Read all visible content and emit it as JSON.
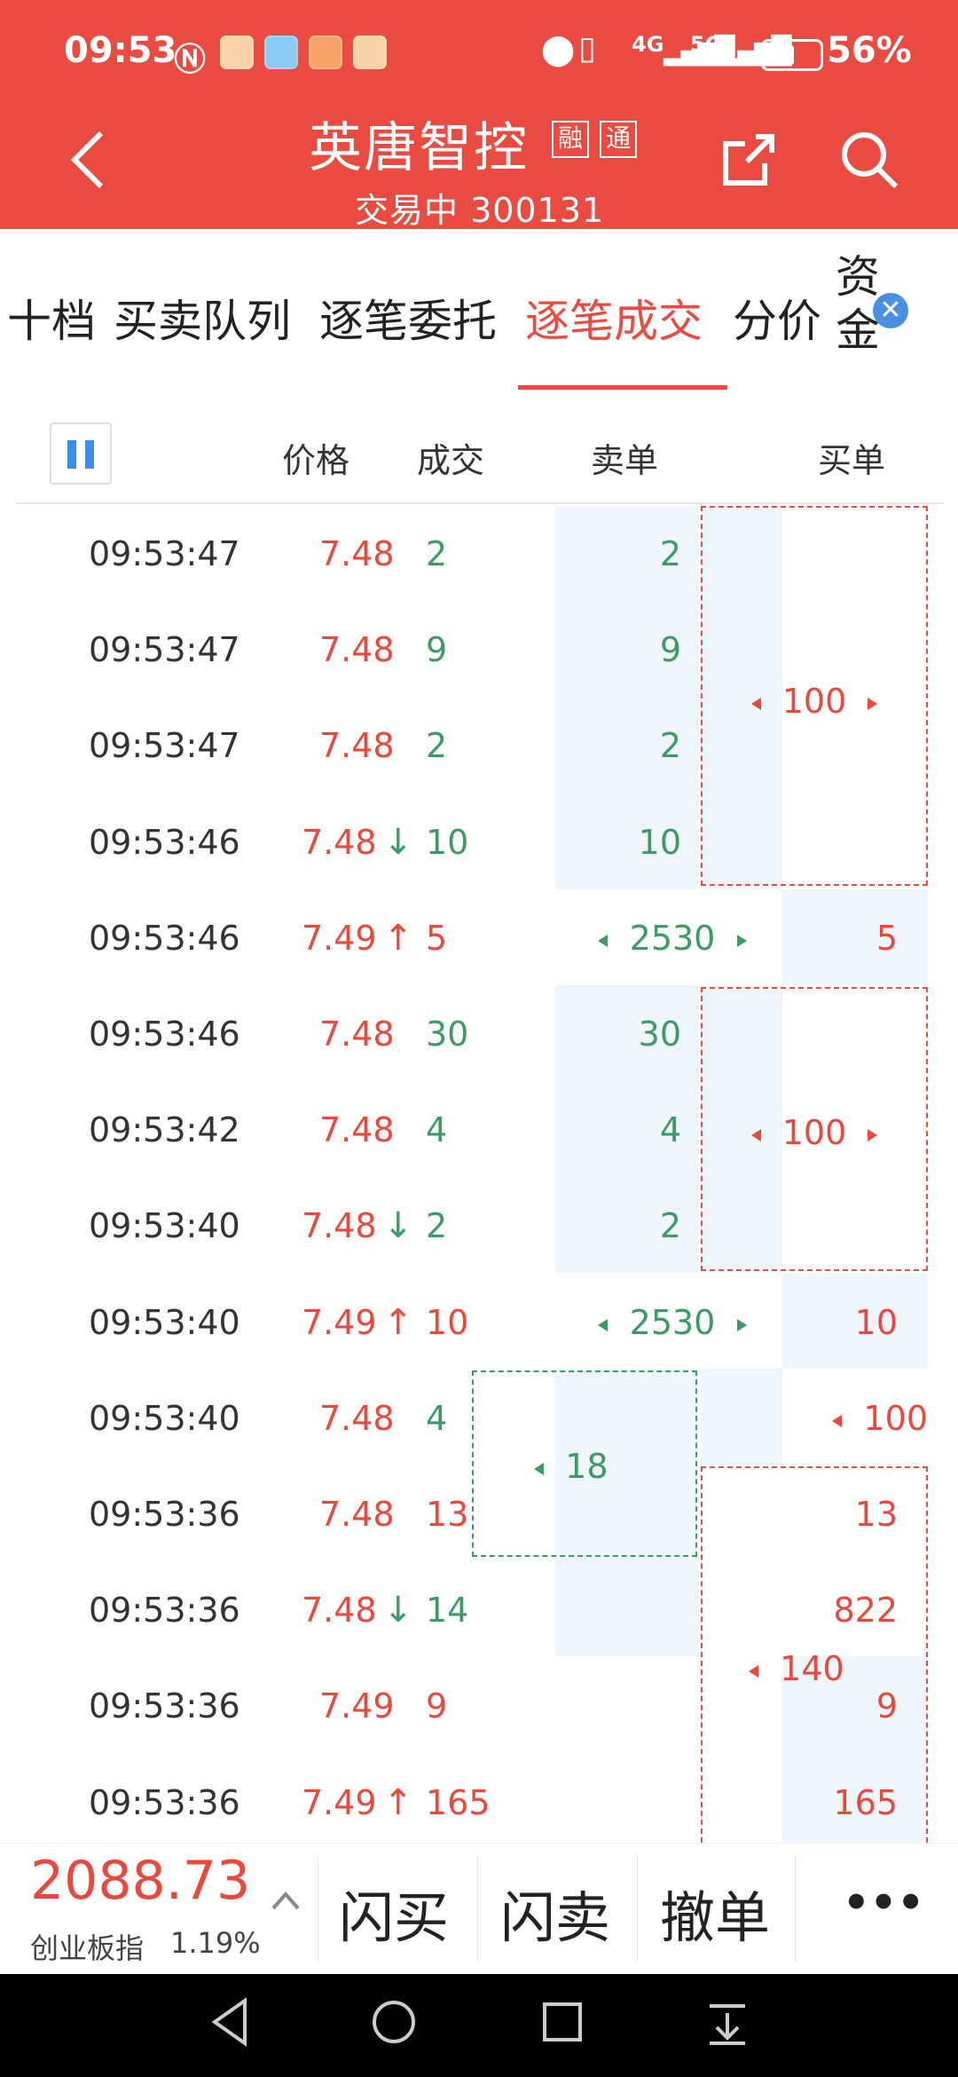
{
  "status_bar": {
    "time": "09:53",
    "battery": "56%",
    "network": [
      "4G",
      "5G"
    ]
  },
  "header": {
    "title": "英唐智控",
    "tag_1": "融",
    "tag_2": "通",
    "subtitle": "交易中 300131"
  },
  "tabs": [
    {
      "label": "十档"
    },
    {
      "label": "买卖队列"
    },
    {
      "label": "逐笔委托"
    },
    {
      "label": "逐笔成交",
      "active": true
    },
    {
      "label": "分价"
    },
    {
      "label": "资金"
    }
  ],
  "table_header": {
    "price": "价格",
    "volume": "成交",
    "sell_order": "卖单",
    "buy_order": "买单"
  },
  "rows": [
    {
      "time": "09:53:47",
      "price": "7.48",
      "arrow": "",
      "volume": "2",
      "sell": "2",
      "buy": ""
    },
    {
      "time": "09:53:47",
      "price": "7.48",
      "arrow": "",
      "volume": "9",
      "sell": "9",
      "buy": ""
    },
    {
      "time": "09:53:47",
      "price": "7.48",
      "arrow": "",
      "volume": "2",
      "sell": "2",
      "buy": ""
    },
    {
      "time": "09:53:46",
      "price": "7.48",
      "arrow": "↓",
      "volume": "10",
      "sell": "10",
      "buy": ""
    },
    {
      "time": "09:53:46",
      "price": "7.49",
      "arrow": "↑",
      "volume": "5",
      "sell": "2530",
      "buy": "5"
    },
    {
      "time": "09:53:46",
      "price": "7.48",
      "arrow": "",
      "volume": "30",
      "sell": "30",
      "buy": ""
    },
    {
      "time": "09:53:42",
      "price": "7.48",
      "arrow": "",
      "volume": "4",
      "sell": "4",
      "buy": ""
    },
    {
      "time": "09:53:40",
      "price": "7.48",
      "arrow": "↓",
      "volume": "2",
      "sell": "2",
      "buy": ""
    },
    {
      "time": "09:53:40",
      "price": "7.49",
      "arrow": "↑",
      "volume": "10",
      "sell": "2530",
      "buy": "10"
    },
    {
      "time": "09:53:40",
      "price": "7.48",
      "arrow": "",
      "volume": "4",
      "sell": "",
      "buy": "100"
    },
    {
      "time": "09:53:36",
      "price": "7.48",
      "arrow": "",
      "volume": "13",
      "sell": "",
      "buy": "13"
    },
    {
      "time": "09:53:36",
      "price": "7.48",
      "arrow": "↓",
      "volume": "14",
      "sell": "",
      "buy": "822"
    },
    {
      "time": "09:53:36",
      "price": "7.49",
      "arrow": "",
      "volume": "9",
      "sell": "",
      "buy": "9"
    },
    {
      "time": "09:53:36",
      "price": "7.49",
      "arrow": "↑",
      "volume": "165",
      "sell": "",
      "buy": "165"
    }
  ],
  "groups": {
    "buy_group_1": "100",
    "buy_group_2": "100",
    "sell_group": "18",
    "buy_group_3": "140"
  },
  "index": {
    "value": "2088.73",
    "name": "创业板指",
    "change": "1.19%"
  },
  "actions": {
    "flash_buy": "闪买",
    "flash_sell": "闪卖",
    "cancel": "撤单",
    "more": "•••"
  },
  "colors": {
    "header_bg": "#e94b41",
    "up_red": "#e9483e",
    "down_green": "#3d9a64",
    "highlight_blue": "#eef6fb"
  }
}
